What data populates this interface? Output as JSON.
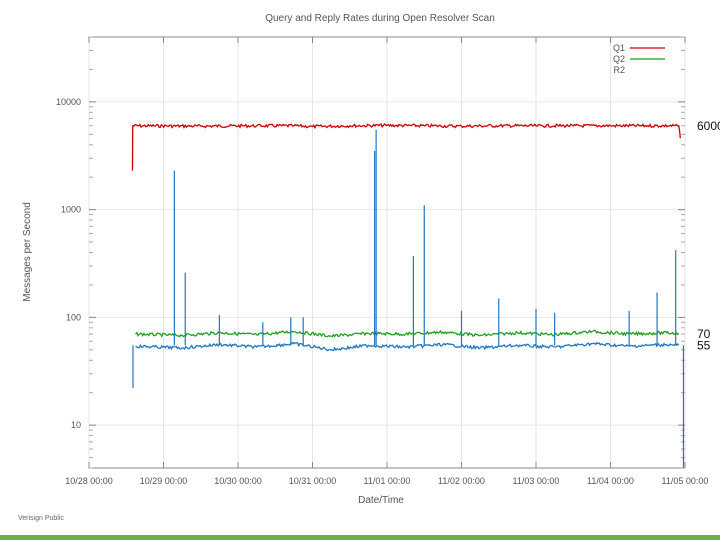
{
  "footer": {
    "text": "Verisign Public"
  },
  "colors": {
    "q1": "#cc0000",
    "q2": "#1fa01f",
    "r2": "#1f77c4",
    "footer_bar": "#6ab04c"
  },
  "chart_data": {
    "type": "line",
    "title": "Query and Reply Rates during Open Resolver Scan",
    "xlabel": "Date/Time",
    "ylabel": "Messages per Second",
    "yscale": "log",
    "ylim": [
      4,
      40000
    ],
    "xlim": [
      "10/28 00:00",
      "11/05 00:00"
    ],
    "xticks": [
      "10/28 00:00",
      "10/29 00:00",
      "10/30 00:00",
      "10/31 00:00",
      "11/01 00:00",
      "11/02 00:00",
      "11/03 00:00",
      "11/04 00:00",
      "11/05 00:00"
    ],
    "yticks": [
      "10",
      "100",
      "1000",
      "10000"
    ],
    "ytick_values": [
      10,
      100,
      1000,
      10000
    ],
    "grid": true,
    "legend": "top-right",
    "series": [
      {
        "name": "Q1",
        "color": "#cc0000",
        "baseline": 6000,
        "x": [
          "10/28 14:00",
          "10/28 14:05",
          "10/29 12:00",
          "10/30 06:00",
          "10/30 18:00",
          "10/31 00:00",
          "10/31 12:00",
          "11/01 00:00",
          "11/01 12:00",
          "11/02 00:00",
          "11/02 12:00",
          "11/03 00:00",
          "11/03 12:00",
          "11/04 00:00",
          "11/04 12:00",
          "11/04 22:00",
          "11/04 22:30"
        ],
        "values": [
          2300,
          6000,
          5950,
          6000,
          6000,
          5900,
          6000,
          6050,
          6000,
          5950,
          6000,
          6000,
          6000,
          6000,
          6000,
          6000,
          4600
        ]
      },
      {
        "name": "Q2",
        "color": "#1fa01f",
        "baseline": 70,
        "x": [
          "10/28 15:00",
          "10/29 06:00",
          "10/29 18:00",
          "10/30 06:00",
          "10/30 18:00",
          "10/31 06:00",
          "10/31 18:00",
          "11/01 06:00",
          "11/01 18:00",
          "11/02 06:00",
          "11/02 18:00",
          "11/03 06:00",
          "11/03 18:00",
          "11/04 06:00",
          "11/04 18:00",
          "11/04 22:00"
        ],
        "values": [
          70,
          68,
          72,
          69,
          74,
          67,
          71,
          70,
          73,
          68,
          72,
          69,
          74,
          70,
          72,
          71
        ]
      },
      {
        "name": "R2",
        "color": "#1f77c4",
        "baseline": 55,
        "x": [
          "10/28 15:00",
          "10/29 06:00",
          "10/29 18:00",
          "10/30 06:00",
          "10/30 18:00",
          "10/31 06:00",
          "10/31 18:00",
          "11/01 06:00",
          "11/01 18:00",
          "11/02 06:00",
          "11/02 18:00",
          "11/03 06:00",
          "11/03 18:00",
          "11/04 06:00",
          "11/04 18:00",
          "11/04 22:00"
        ],
        "values": [
          54,
          52,
          56,
          53,
          57,
          50,
          55,
          53,
          56,
          52,
          55,
          53,
          57,
          54,
          56,
          55
        ],
        "spikes": [
          {
            "x": "10/28 14:10",
            "value": 22
          },
          {
            "x": "10/29 03:30",
            "value": 2300
          },
          {
            "x": "10/29 07:00",
            "value": 260
          },
          {
            "x": "10/29 18:00",
            "value": 105
          },
          {
            "x": "10/30 08:00",
            "value": 90
          },
          {
            "x": "10/30 17:00",
            "value": 100
          },
          {
            "x": "10/30 21:00",
            "value": 100
          },
          {
            "x": "10/31 20:00",
            "value": 3500
          },
          {
            "x": "10/31 20:30",
            "value": 5500
          },
          {
            "x": "11/01 08:30",
            "value": 370
          },
          {
            "x": "11/01 12:00",
            "value": 1100
          },
          {
            "x": "11/02 00:00",
            "value": 115
          },
          {
            "x": "11/02 12:00",
            "value": 150
          },
          {
            "x": "11/03 00:00",
            "value": 120
          },
          {
            "x": "11/03 06:00",
            "value": 110
          },
          {
            "x": "11/04 06:00",
            "value": 115
          },
          {
            "x": "11/04 15:00",
            "value": 170
          },
          {
            "x": "11/04 21:00",
            "value": 420
          },
          {
            "x": "11/04 23:30",
            "value": 4
          }
        ]
      }
    ],
    "annotations": [
      {
        "text": "6000",
        "value": 6000
      },
      {
        "text": "70",
        "value": 70
      },
      {
        "text": "55",
        "value": 55
      }
    ]
  }
}
